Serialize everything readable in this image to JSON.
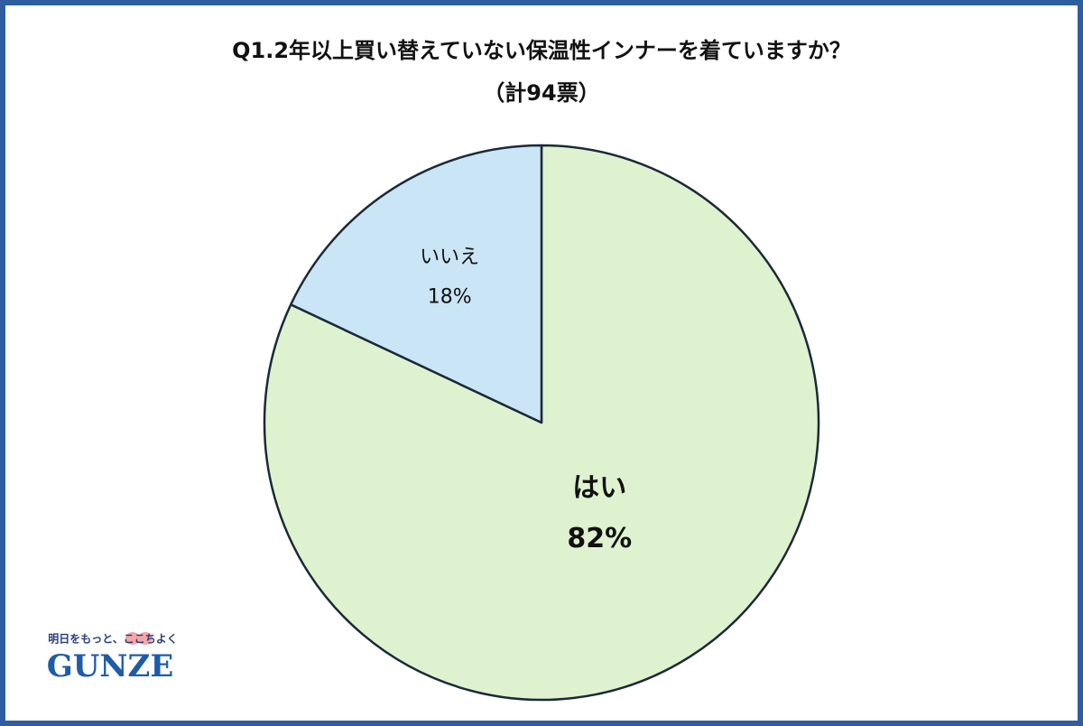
{
  "chart_data": {
    "type": "pie",
    "title": "Q1.2年以上買い替えていない保温性インナーを着ていますか？",
    "subtitle": "（計94票）",
    "categories": [
      "はい",
      "いいえ"
    ],
    "values": [
      82,
      18
    ],
    "value_labels": [
      "82%",
      "18%"
    ],
    "colors": [
      "#dff2d0",
      "#cae5f6"
    ]
  },
  "logo": {
    "tagline": "明日をもっと、ここちよく",
    "brand": "GUNZE"
  }
}
